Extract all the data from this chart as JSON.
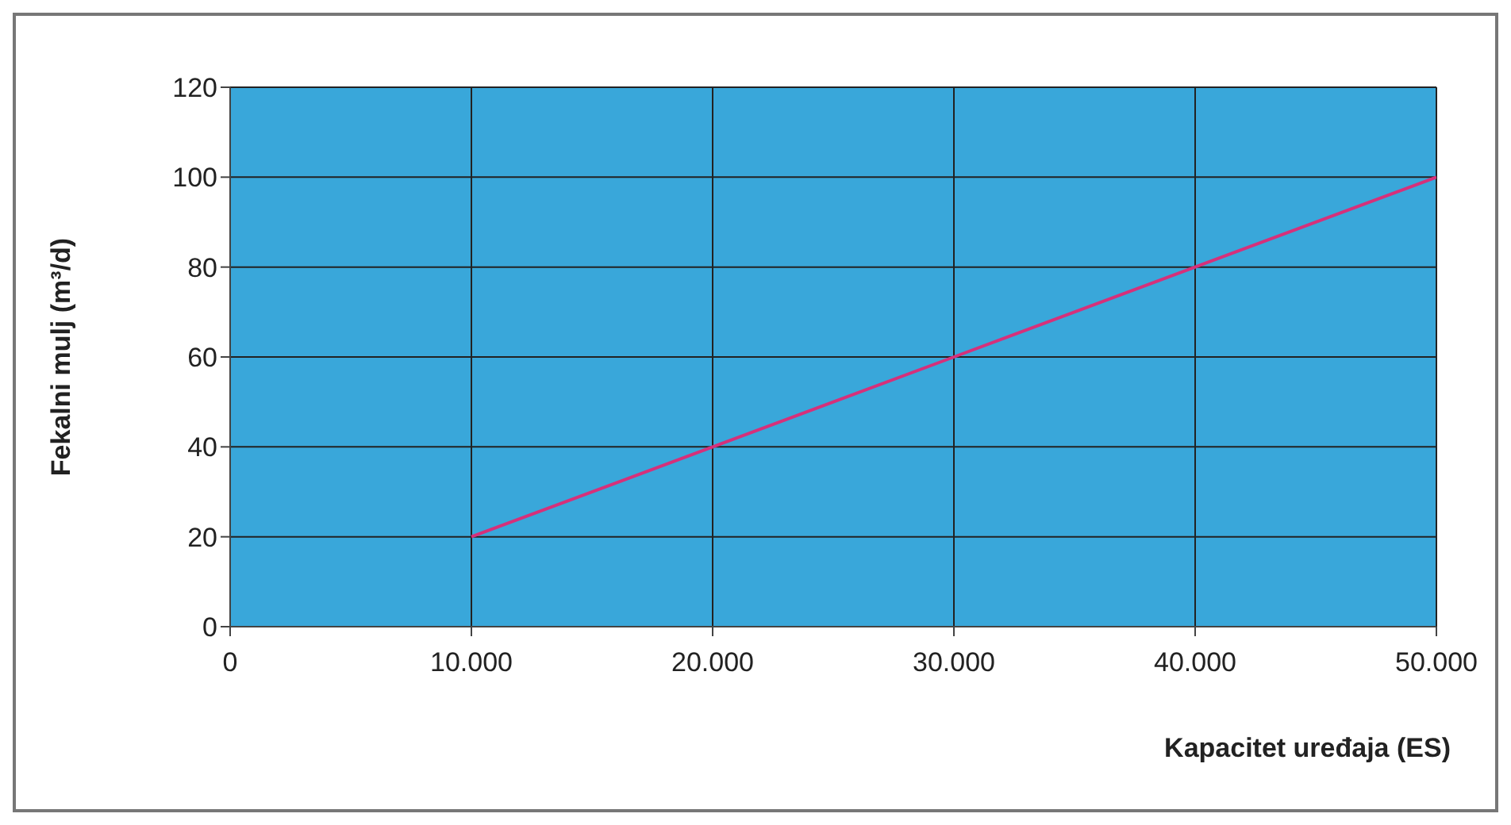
{
  "chart_data": {
    "type": "line",
    "xlabel": "Kapacitet uređaja (ES)",
    "ylabel": "Fekalni mulj (m³/d)",
    "x": [
      10000,
      20000,
      30000,
      40000,
      50000
    ],
    "series": [
      {
        "color": "#d6307a",
        "values": [
          20,
          40,
          60,
          80,
          100
        ]
      }
    ],
    "xlim": [
      0,
      50000
    ],
    "xticks": [
      0,
      {
        "value": 10000,
        "label": "10.000"
      },
      {
        "value": 20000,
        "label": "20.000"
      },
      {
        "value": 30000,
        "label": "30.000"
      },
      {
        "value": 40000,
        "label": "40.000"
      },
      {
        "value": 50000,
        "label": "50.000"
      }
    ],
    "ylim": [
      0,
      120
    ],
    "yticks": [
      0,
      20,
      40,
      60,
      80,
      100,
      120
    ],
    "grid": true,
    "marker": "none",
    "line_style": "solid"
  }
}
